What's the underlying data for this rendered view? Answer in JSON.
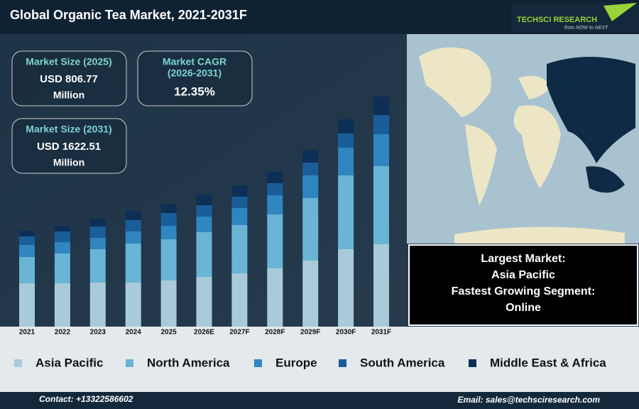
{
  "header": {
    "title": "Global Organic Tea Market, 2021-2031F",
    "logo": "TECHSCI RESEARCH",
    "tagline": "from NOW to NEXT"
  },
  "kpis": [
    {
      "label": "Market Size (2025)",
      "value": "USD 806.77",
      "unit": "Million"
    },
    {
      "label": "Market CAGR",
      "period": "(2026-2031)",
      "value": "12.35%"
    },
    {
      "label": "Market Size (2031)",
      "value": "USD 1622.51",
      "unit": "Million"
    }
  ],
  "info": [
    "Largest Market:",
    "Asia Pacific",
    "Fastest Growing Segment:",
    "Online"
  ],
  "footer": {
    "contact": "Contact: +13322586602",
    "email": "Email: sales@techsciresearch.com"
  },
  "chart_data": {
    "type": "stacked_bar",
    "categories": [
      "2021",
      "2022",
      "2023",
      "2024",
      "2025",
      "2026E",
      "2027F",
      "2028F",
      "2029F",
      "2030F",
      "2031F"
    ],
    "ylim": [
      0,
      340
    ],
    "series": [
      {
        "name": "Asia Pacific",
        "color": "#a9cbd9",
        "values": [
          61,
          61,
          62,
          62,
          65,
          70,
          75,
          82,
          93,
          109,
          116
        ]
      },
      {
        "name": "North America",
        "color": "#6ab4d6",
        "values": [
          37,
          42,
          47,
          55,
          58,
          63,
          68,
          76,
          88,
          104,
          110
        ]
      },
      {
        "name": "Europe",
        "color": "#2f86c0",
        "values": [
          17,
          16,
          16,
          17,
          19,
          22,
          24,
          27,
          32,
          39,
          45
        ]
      },
      {
        "name": "South America",
        "color": "#1a5e99",
        "values": [
          12,
          15,
          16,
          16,
          18,
          16,
          16,
          17,
          18,
          20,
          27
        ]
      },
      {
        "name": "Middle East & Africa",
        "color": "#0d2f55",
        "values": [
          8,
          8,
          11,
          13,
          13,
          15,
          16,
          16,
          18,
          20,
          26
        ]
      }
    ]
  }
}
